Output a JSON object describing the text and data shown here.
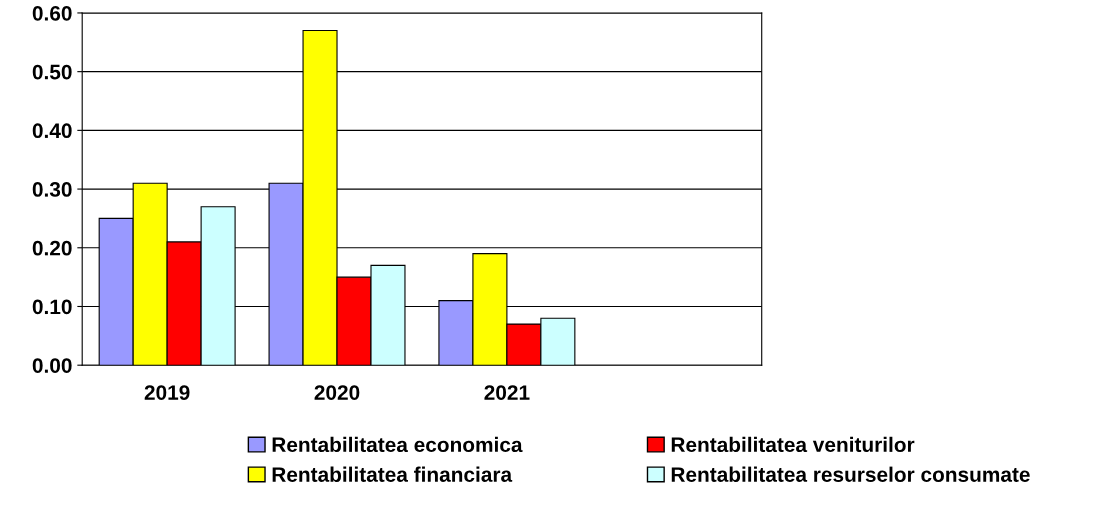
{
  "chart_data": {
    "type": "bar",
    "categories": [
      "2019",
      "2020",
      "2021",
      null
    ],
    "series": [
      {
        "name": "Rentabilitatea economica",
        "color": "#9999ff",
        "values": [
          0.25,
          0.31,
          0.11,
          null
        ]
      },
      {
        "name": "Rentabilitatea financiara",
        "color": "#ffff00",
        "values": [
          0.31,
          0.57,
          0.19,
          null
        ]
      },
      {
        "name": "Rentabilitatea veniturilor",
        "color": "#ff0000",
        "values": [
          0.21,
          0.15,
          0.07,
          null
        ]
      },
      {
        "name": "Rentabilitatea resurselor consumate",
        "color": "#ccffff",
        "values": [
          0.27,
          0.17,
          0.08,
          null
        ]
      }
    ],
    "ylim": [
      0,
      0.6
    ],
    "yticks": [
      {
        "value": 0,
        "label": "0.00"
      },
      {
        "value": 0.1,
        "label": "0.10"
      },
      {
        "value": 0.2,
        "label": "0.20"
      },
      {
        "value": 0.3,
        "label": "0.30"
      },
      {
        "value": 0.4,
        "label": "0.40"
      },
      {
        "value": 0.5,
        "label": "0.50"
      },
      {
        "value": 0.6,
        "label": "0.60"
      }
    ],
    "grid": "y",
    "legend": "bottom"
  }
}
